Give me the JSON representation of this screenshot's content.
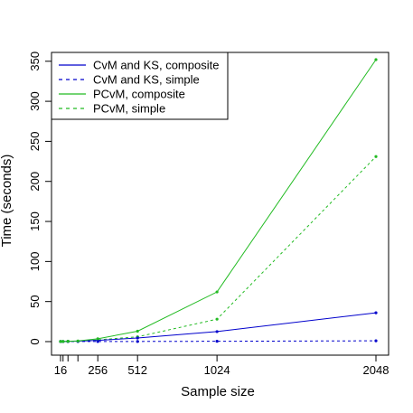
{
  "chart_data": {
    "type": "line",
    "xlabel": "Sample size",
    "ylabel": "Time (seconds)",
    "x_ticks": [
      16,
      256,
      512,
      1024,
      2048
    ],
    "y_ticks": [
      0,
      50,
      100,
      150,
      200,
      250,
      300,
      350
    ],
    "xlim": [
      16,
      2048
    ],
    "ylim": [
      0,
      352
    ],
    "x": [
      16,
      32,
      64,
      128,
      256,
      512,
      1024,
      2048
    ],
    "series": [
      {
        "name": "CvM and KS, composite",
        "color": "#0000CC",
        "dash": "solid",
        "values": [
          0.1,
          0.2,
          0.3,
          0.5,
          1.5,
          4.5,
          12.5,
          36
        ]
      },
      {
        "name": "CvM and KS, simple",
        "color": "#0000CC",
        "dash": "dashed",
        "values": [
          0.05,
          0.05,
          0.1,
          0.1,
          0.1,
          0.2,
          0.4,
          1.0
        ]
      },
      {
        "name": "PCvM, composite",
        "color": "#22BB22",
        "dash": "solid",
        "values": [
          0.1,
          0.2,
          0.4,
          0.8,
          3.5,
          13,
          62,
          352
        ]
      },
      {
        "name": "PCvM, simple",
        "color": "#22BB22",
        "dash": "dashed",
        "values": [
          0.1,
          0.1,
          0.3,
          0.6,
          2.2,
          6,
          28,
          231
        ]
      }
    ],
    "legend_position": "top-left",
    "grid": false
  }
}
